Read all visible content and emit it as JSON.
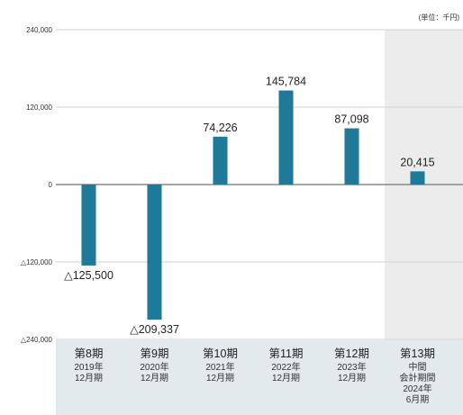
{
  "chart_data": {
    "type": "bar",
    "unit_label": "(単位：千円)",
    "ylim": [
      -240000,
      240000
    ],
    "yticks": [
      {
        "value": 240000,
        "label": "240,000"
      },
      {
        "value": 120000,
        "label": "120,000"
      },
      {
        "value": 0,
        "label": "0"
      },
      {
        "value": -120000,
        "label": "△120,000"
      },
      {
        "value": -240000,
        "label": "△240,000"
      }
    ],
    "grid": true,
    "bar_color": "#1f7a99",
    "highlight_color": "#ececec",
    "category_band_color": "#e2eaee",
    "categories": [
      {
        "label": "第8期",
        "sub": [
          "2019年",
          "12月期"
        ],
        "value": -125500,
        "value_label": "△125,500",
        "highlight": false
      },
      {
        "label": "第9期",
        "sub": [
          "2020年",
          "12月期"
        ],
        "value": -209337,
        "value_label": "△209,337",
        "highlight": false
      },
      {
        "label": "第10期",
        "sub": [
          "2021年",
          "12月期"
        ],
        "value": 74226,
        "value_label": "74,226",
        "highlight": false
      },
      {
        "label": "第11期",
        "sub": [
          "2022年",
          "12月期"
        ],
        "value": 145784,
        "value_label": "145,784",
        "highlight": false
      },
      {
        "label": "第12期",
        "sub": [
          "2023年",
          "12月期"
        ],
        "value": 87098,
        "value_label": "87,098",
        "highlight": false
      },
      {
        "label": "第13期",
        "sub": [
          "中間",
          "会計期間",
          "2024年",
          "6月期"
        ],
        "value": 20415,
        "value_label": "20,415",
        "highlight": true
      }
    ]
  }
}
